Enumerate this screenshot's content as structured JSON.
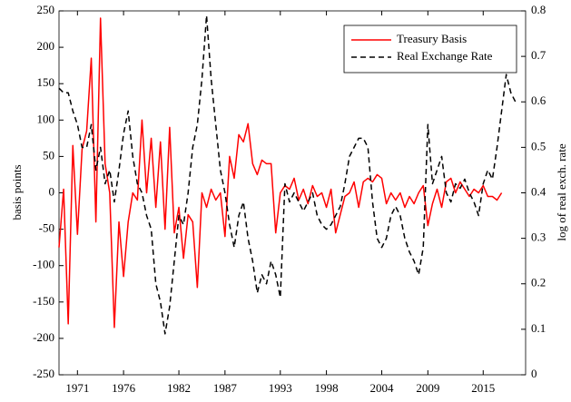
{
  "chart_data": {
    "type": "line",
    "ylabel": "basis points",
    "y2label": "log of real exch. rate",
    "x": [
      1969.0,
      1969.5,
      1970.0,
      1970.5,
      1971.0,
      1971.5,
      1972.0,
      1972.5,
      1973.0,
      1973.5,
      1974.0,
      1974.5,
      1975.0,
      1975.5,
      1976.0,
      1976.5,
      1977.0,
      1977.5,
      1978.0,
      1978.5,
      1979.0,
      1979.5,
      1980.0,
      1980.5,
      1981.0,
      1981.5,
      1982.0,
      1982.5,
      1983.0,
      1983.5,
      1984.0,
      1984.5,
      1985.0,
      1985.5,
      1986.0,
      1986.5,
      1987.0,
      1987.5,
      1988.0,
      1988.5,
      1989.0,
      1989.5,
      1990.0,
      1990.5,
      1991.0,
      1991.5,
      1992.0,
      1992.5,
      1993.0,
      1993.5,
      1994.0,
      1994.5,
      1995.0,
      1995.5,
      1996.0,
      1996.5,
      1997.0,
      1997.5,
      1998.0,
      1998.5,
      1999.0,
      1999.5,
      2000.0,
      2000.5,
      2001.0,
      2001.5,
      2002.0,
      2002.5,
      2003.0,
      2003.5,
      2004.0,
      2004.5,
      2005.0,
      2005.5,
      2006.0,
      2006.5,
      2007.0,
      2007.5,
      2008.0,
      2008.5,
      2009.0,
      2009.5,
      2010.0,
      2010.5,
      2011.0,
      2011.5,
      2012.0,
      2012.5,
      2013.0,
      2013.5,
      2014.0,
      2014.5,
      2015.0,
      2015.5,
      2016.0,
      2016.5,
      2017.0,
      2017.5,
      2018.0,
      2018.5
    ],
    "series": [
      {
        "name": "Treasury Basis",
        "color": "#ff0000",
        "linestyle": "solid",
        "values": [
          -75,
          5,
          -180,
          65,
          -57,
          60,
          85,
          185,
          -40,
          240,
          40,
          0,
          -185,
          -40,
          -115,
          -40,
          0,
          -10,
          100,
          0,
          75,
          -20,
          70,
          -50,
          90,
          -55,
          -20,
          -90,
          -30,
          -40,
          -130,
          0,
          -20,
          5,
          -10,
          0,
          -60,
          50,
          20,
          80,
          70,
          95,
          40,
          25,
          45,
          40,
          40,
          -55,
          0,
          10,
          5,
          20,
          -10,
          5,
          -15,
          10,
          -5,
          0,
          -20,
          5,
          -55,
          -30,
          -5,
          0,
          15,
          -20,
          15,
          20,
          15,
          25,
          20,
          -15,
          0,
          -10,
          0,
          -20,
          -5,
          -15,
          0,
          10,
          -45,
          -15,
          5,
          -20,
          15,
          20,
          0,
          15,
          5,
          -5,
          5,
          0,
          10,
          -5,
          -5,
          -10,
          0,
          null,
          null,
          null
        ]
      },
      {
        "name": "Real Exchange Rate",
        "color": "#000000",
        "linestyle": "dashed",
        "axis": "y2",
        "values": [
          0.63,
          0.62,
          0.62,
          0.58,
          0.55,
          0.5,
          0.5,
          0.55,
          0.45,
          0.5,
          0.42,
          0.45,
          0.38,
          0.45,
          0.53,
          0.58,
          0.48,
          0.42,
          0.4,
          0.35,
          0.32,
          0.2,
          0.16,
          0.09,
          0.15,
          0.25,
          0.35,
          0.33,
          0.4,
          0.5,
          0.55,
          0.65,
          0.79,
          0.65,
          0.55,
          0.45,
          0.4,
          0.33,
          0.28,
          0.35,
          0.38,
          0.3,
          0.25,
          0.18,
          0.22,
          0.2,
          0.25,
          0.22,
          0.17,
          0.42,
          0.38,
          0.4,
          0.38,
          0.36,
          0.38,
          0.4,
          0.35,
          0.33,
          0.32,
          0.33,
          0.35,
          0.37,
          0.42,
          0.48,
          0.5,
          0.52,
          0.52,
          0.5,
          0.38,
          0.3,
          0.28,
          0.3,
          0.35,
          0.37,
          0.35,
          0.3,
          0.27,
          0.25,
          0.22,
          0.28,
          0.55,
          0.42,
          0.45,
          0.48,
          0.4,
          0.38,
          0.42,
          0.41,
          0.43,
          0.4,
          0.38,
          0.35,
          0.42,
          0.45,
          0.43,
          0.5,
          0.58,
          0.66,
          0.62,
          0.6
        ]
      }
    ],
    "xlim": [
      1969,
      2019.6
    ],
    "xticks": [
      1971,
      1976,
      1982,
      1987,
      1993,
      1998,
      2004,
      2009,
      2015
    ],
    "ylim": [
      -250,
      250
    ],
    "yticks": [
      -250,
      -200,
      -150,
      -100,
      -50,
      0,
      50,
      100,
      150,
      200,
      250
    ],
    "y2lim": [
      0,
      0.8
    ],
    "y2ticks": [
      0,
      0.1,
      0.2,
      0.3,
      0.4,
      0.5,
      0.6,
      0.7,
      0.8
    ],
    "legend": "upper right",
    "grid": false
  }
}
